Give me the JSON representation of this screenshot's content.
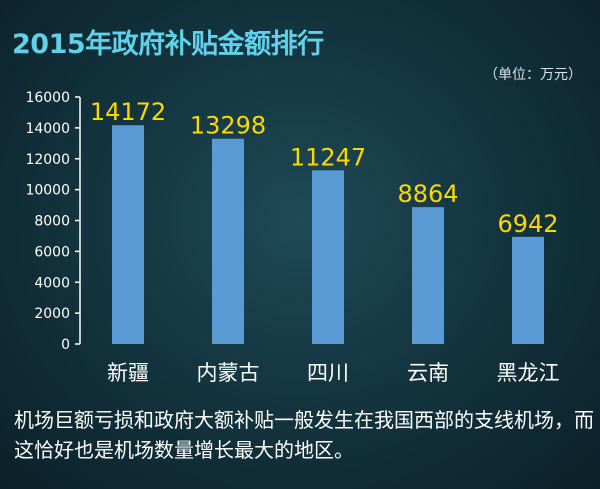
{
  "title": "2015年政府补贴金额排行",
  "unit_note": "（单位：万元）",
  "caption": "机场巨额亏损和政府大额补贴一般发生在我国西部的支线机场，而这恰好也是机场数量增长最大的地区。",
  "colors": {
    "bar": "#5b9bd5",
    "value_label": "#ffd700",
    "axis": "#ffffff",
    "title": "#5fd1ea"
  },
  "chart_data": {
    "type": "bar",
    "categories": [
      "新疆",
      "内蒙古",
      "四川",
      "云南",
      "黑龙江"
    ],
    "values": [
      14172,
      13298,
      11247,
      8864,
      6942
    ],
    "title": "2015年政府补贴金额排行",
    "xlabel": "",
    "ylabel": "",
    "ylim": [
      0,
      16000
    ],
    "yticks": [
      "0",
      "2000",
      "4000",
      "6000",
      "8000",
      "10000",
      "12000",
      "14000",
      "16000"
    ],
    "grid": false,
    "legend": "none"
  }
}
